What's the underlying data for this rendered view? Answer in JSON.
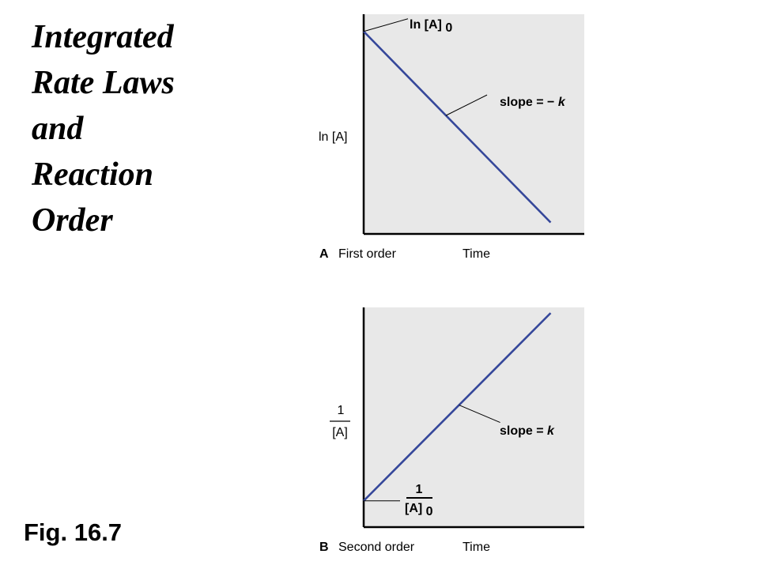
{
  "title_lines": [
    "Integrated",
    "Rate Laws",
    "and",
    "Reaction",
    "Order"
  ],
  "figure_label": "Fig. 16.7",
  "colors": {
    "line": "#35479a",
    "plot_background": "#e8e8e8",
    "axis": "#000000"
  },
  "chart_data": [
    {
      "type": "line",
      "panel_letter": "A",
      "panel_label": "First order",
      "xlabel": "Time",
      "ylabel": "ln [A]",
      "intercept_label": {
        "text": "ln [A]",
        "sub": "0"
      },
      "slope_label": {
        "prefix": "slope = −",
        "k": "k"
      },
      "series": [
        {
          "x": [
            0,
            1
          ],
          "y": [
            1,
            0
          ]
        }
      ],
      "xlim": [
        0,
        1.18
      ],
      "ylim": [
        -0.06,
        1.09
      ],
      "grid": false
    },
    {
      "type": "line",
      "panel_letter": "B",
      "panel_label": "Second order",
      "xlabel": "Time",
      "ylabel": {
        "numerator": "1",
        "denominator": "[A]"
      },
      "intercept_label": {
        "numerator": "1",
        "denominator": "[A]",
        "sub": "0"
      },
      "slope_label": {
        "prefix": "slope = ",
        "k": "k"
      },
      "series": [
        {
          "x": [
            0,
            1
          ],
          "y": [
            0,
            1
          ]
        }
      ],
      "xlim": [
        0,
        1.18
      ],
      "ylim": [
        -0.14,
        1.03
      ],
      "grid": false
    }
  ]
}
